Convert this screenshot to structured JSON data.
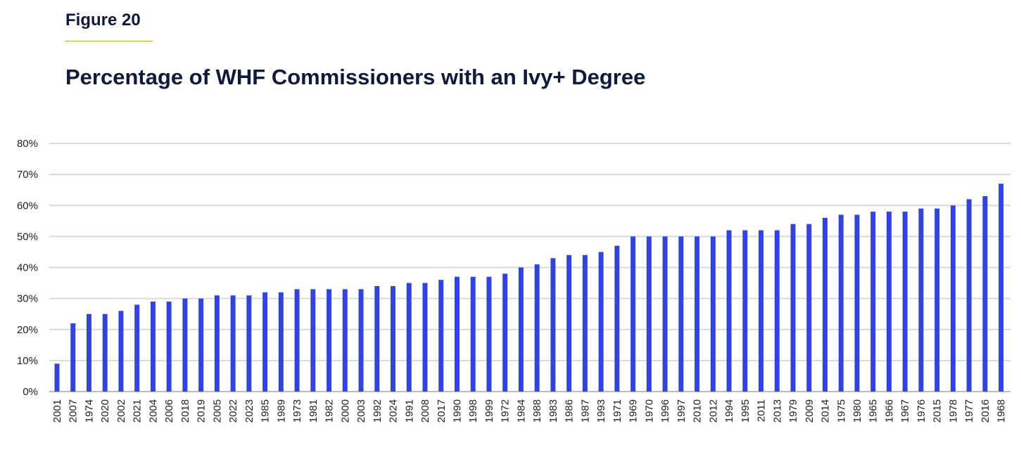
{
  "figure_label": "Figure 20",
  "chart_data": {
    "type": "bar",
    "title": "Percentage of WHF Commissioners with an Ivy+ Degree",
    "xlabel": "",
    "ylabel": "",
    "ylim": [
      0,
      80
    ],
    "yticks": [
      "0%",
      "10%",
      "20%",
      "30%",
      "40%",
      "50%",
      "60%",
      "70%",
      "80%"
    ],
    "grid": true,
    "bar_color": "#3344dd",
    "categories": [
      "2001",
      "2007",
      "1974",
      "2020",
      "2002",
      "2021",
      "2004",
      "2006",
      "2018",
      "2019",
      "2005",
      "2022",
      "2023",
      "1985",
      "1989",
      "1973",
      "1981",
      "1982",
      "2000",
      "2003",
      "1992",
      "2024",
      "1991",
      "2008",
      "2017",
      "1990",
      "1998",
      "1999",
      "1972",
      "1984",
      "1988",
      "1983",
      "1986",
      "1987",
      "1993",
      "1971",
      "1969",
      "1970",
      "1996",
      "1997",
      "2010",
      "2012",
      "1994",
      "1995",
      "2011",
      "2013",
      "1979",
      "2009",
      "2014",
      "1975",
      "1980",
      "1965",
      "1966",
      "1967",
      "1976",
      "2015",
      "1978",
      "1977",
      "2016",
      "1968"
    ],
    "values": [
      9,
      22,
      25,
      25,
      26,
      28,
      29,
      29,
      30,
      30,
      31,
      31,
      31,
      32,
      32,
      33,
      33,
      33,
      33,
      33,
      34,
      34,
      35,
      35,
      36,
      37,
      37,
      37,
      38,
      40,
      41,
      43,
      44,
      44,
      45,
      47,
      50,
      50,
      50,
      50,
      50,
      50,
      52,
      52,
      52,
      52,
      54,
      54,
      56,
      57,
      57,
      58,
      58,
      58,
      59,
      59,
      60,
      62,
      63,
      67
    ]
  }
}
